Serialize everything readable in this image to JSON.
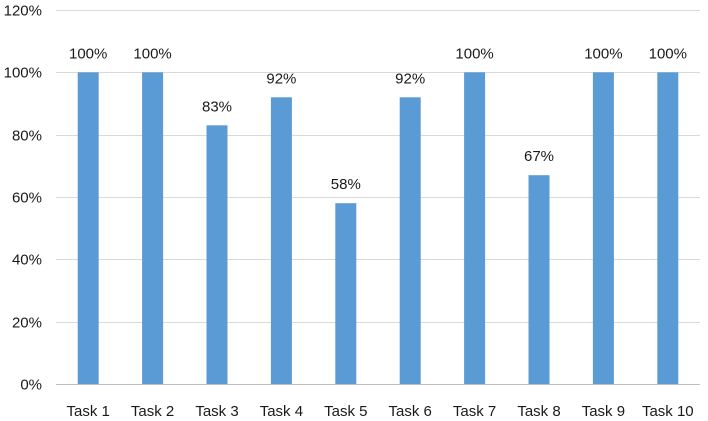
{
  "chart_data": {
    "type": "bar",
    "title": "",
    "xlabel": "",
    "ylabel": "",
    "categories": [
      "Task 1",
      "Task 2",
      "Task 3",
      "Task 4",
      "Task 5",
      "Task 6",
      "Task 7",
      "Task 8",
      "Task 9",
      "Task 10"
    ],
    "values": [
      100,
      100,
      83,
      92,
      58,
      92,
      100,
      67,
      100,
      100
    ],
    "data_labels": [
      "100%",
      "100%",
      "83%",
      "92%",
      "58%",
      "92%",
      "100%",
      "67%",
      "100%",
      "100%"
    ],
    "ylim": [
      0,
      120
    ],
    "yticks": [
      0,
      20,
      40,
      60,
      80,
      100,
      120
    ],
    "ytick_labels": [
      "0%",
      "20%",
      "40%",
      "60%",
      "80%",
      "100%",
      "120%"
    ],
    "grid": true,
    "legend": "none",
    "bar_color": "#5b9bd5"
  }
}
